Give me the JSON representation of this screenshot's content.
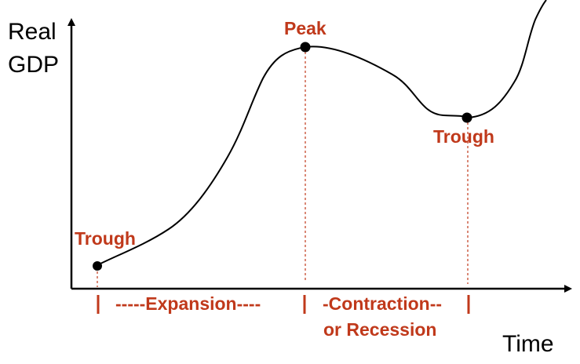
{
  "colors": {
    "accent": "#c0391b",
    "curve": "#000000",
    "axis": "#000000",
    "guide": "#c0391b"
  },
  "axes": {
    "y_label_line1": "Real",
    "y_label_line2": "GDP",
    "x_label": "Time"
  },
  "points": {
    "trough_start": "Trough",
    "peak": "Peak",
    "trough_end": "Trough"
  },
  "phases": {
    "expansion": "-----Expansion----",
    "contraction_line1": "-Contraction--",
    "contraction_line2": "or Recession"
  }
}
